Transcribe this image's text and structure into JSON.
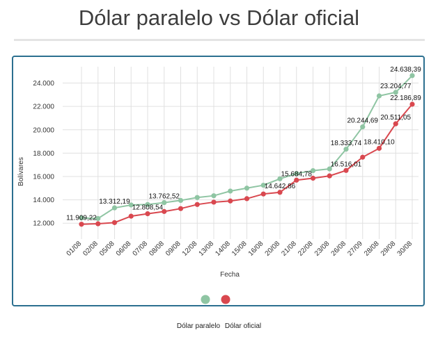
{
  "page": {
    "title": "Dólar paralelo vs Dólar oficial"
  },
  "colors": {
    "paralelo": "#8fc5a3",
    "oficial": "#d9484f",
    "grid": "#e0e0e0",
    "border": "#2b6f8f"
  },
  "chart_data": {
    "type": "line",
    "title": "Dólar paralelo vs Dólar oficial",
    "xlabel": "Fecha",
    "ylabel": "Bolívares",
    "ylim": [
      11000,
      25400
    ],
    "yticks": [
      12000,
      14000,
      16000,
      18000,
      20000,
      22000,
      24000
    ],
    "ytick_labels": [
      "12.000",
      "14.000",
      "16.000",
      "18.000",
      "20.000",
      "22.000",
      "24.000"
    ],
    "categories": [
      "01/08",
      "02/08",
      "05/08",
      "06/08",
      "07/08",
      "08/08",
      "09/08",
      "12/08",
      "13/08",
      "14/08",
      "15/08",
      "16/08",
      "20/08",
      "21/08",
      "22/08",
      "23/08",
      "26/08",
      "27/09",
      "28/08",
      "29/08",
      "30/08"
    ],
    "series": [
      {
        "name": "Dólar paralelo",
        "color": "#8fc5a3",
        "values": [
          12450,
          12400,
          13312.19,
          13560,
          13600,
          13762.52,
          13950,
          14200,
          14350,
          14750,
          15000,
          15250,
          15800,
          16250,
          16500,
          16650,
          18333.74,
          20244.69,
          22900,
          23204.77,
          24638.39
        ]
      },
      {
        "name": "Dólar oficial",
        "color": "#d9484f",
        "values": [
          11909.22,
          11950,
          12050,
          12600,
          12808.54,
          13000,
          13250,
          13600,
          13800,
          13900,
          14100,
          14500,
          14642.86,
          15684.78,
          15850,
          16050,
          16516.01,
          17650,
          18410.1,
          20511.05,
          22186.89
        ]
      }
    ],
    "annotations": [
      {
        "series": 1,
        "index": 0,
        "text": "11.909,22"
      },
      {
        "series": 0,
        "index": 2,
        "text": "13.312,19"
      },
      {
        "series": 1,
        "index": 4,
        "text": "12.808,54"
      },
      {
        "series": 0,
        "index": 5,
        "text": "13.762,52"
      },
      {
        "series": 1,
        "index": 12,
        "text": "14.642,86"
      },
      {
        "series": 1,
        "index": 13,
        "text": "15.684,78"
      },
      {
        "series": 0,
        "index": 16,
        "text": "18.333,74"
      },
      {
        "series": 1,
        "index": 16,
        "text": "16.516,01"
      },
      {
        "series": 0,
        "index": 17,
        "text": "20.244,69"
      },
      {
        "series": 1,
        "index": 18,
        "text": "18.410,10"
      },
      {
        "series": 0,
        "index": 19,
        "text": "23.204,77"
      },
      {
        "series": 1,
        "index": 19,
        "text": "20.511,05"
      },
      {
        "series": 0,
        "index": 20,
        "text": "24.638,39"
      },
      {
        "series": 1,
        "index": 20,
        "text": "22.186,89"
      }
    ],
    "legend": [
      "Dólar paralelo",
      "Dólar oficial"
    ],
    "legend_position": "bottom-center",
    "grid": true
  }
}
